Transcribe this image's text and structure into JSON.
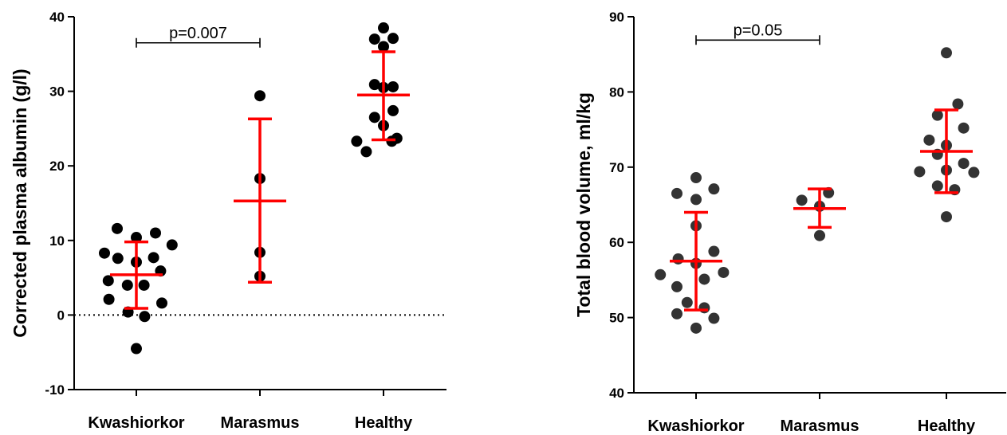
{
  "chart_data": [
    {
      "type": "scatter",
      "ylabel": "Corrected plasma albumin (g/l)",
      "ylim": [
        -10,
        40
      ],
      "yticks": [
        -10,
        0,
        10,
        20,
        30,
        40
      ],
      "categories": [
        "Kwashiorkor",
        "Marasmus",
        "Healthy"
      ],
      "reference_line": 0,
      "point_color": "#000000",
      "error_color": "#ff0000",
      "groups": [
        {
          "name": "Kwashiorkor",
          "points": [
            {
              "offset": -0.5,
              "y": 8.3
            },
            {
              "offset": -0.44,
              "y": 4.6
            },
            {
              "offset": -0.43,
              "y": 2.1
            },
            {
              "offset": -0.3,
              "y": 11.6
            },
            {
              "offset": -0.29,
              "y": 7.6
            },
            {
              "offset": -0.14,
              "y": 4.0
            },
            {
              "offset": -0.13,
              "y": 0.4
            },
            {
              "offset": 0.0,
              "y": 7.1
            },
            {
              "offset": 0.0,
              "y": 10.4
            },
            {
              "offset": 0.0,
              "y": -4.5
            },
            {
              "offset": 0.12,
              "y": 4.0
            },
            {
              "offset": 0.13,
              "y": -0.2
            },
            {
              "offset": 0.27,
              "y": 7.7
            },
            {
              "offset": 0.3,
              "y": 11.0
            },
            {
              "offset": 0.38,
              "y": 5.9
            },
            {
              "offset": 0.4,
              "y": 1.6
            },
            {
              "offset": 0.56,
              "y": 9.4
            }
          ],
          "mean": 5.4,
          "err_low": 0.9,
          "err_high": 9.8
        },
        {
          "name": "Marasmus",
          "points": [
            {
              "offset": 0.0,
              "y": 29.4
            },
            {
              "offset": 0.0,
              "y": 18.3
            },
            {
              "offset": 0.0,
              "y": 8.4
            },
            {
              "offset": 0.0,
              "y": 5.2
            }
          ],
          "mean": 15.3,
          "err_low": 4.4,
          "err_high": 26.3
        },
        {
          "name": "Healthy",
          "points": [
            {
              "offset": -0.42,
              "y": 23.3
            },
            {
              "offset": -0.27,
              "y": 21.9
            },
            {
              "offset": -0.14,
              "y": 37.0
            },
            {
              "offset": -0.14,
              "y": 30.9
            },
            {
              "offset": -0.14,
              "y": 26.5
            },
            {
              "offset": 0.0,
              "y": 38.5
            },
            {
              "offset": 0.0,
              "y": 36.0
            },
            {
              "offset": 0.0,
              "y": 30.5
            },
            {
              "offset": 0.0,
              "y": 25.4
            },
            {
              "offset": 0.13,
              "y": 23.3
            },
            {
              "offset": 0.15,
              "y": 27.4
            },
            {
              "offset": 0.15,
              "y": 30.6
            },
            {
              "offset": 0.15,
              "y": 37.1
            },
            {
              "offset": 0.21,
              "y": 23.7
            }
          ],
          "mean": 29.5,
          "err_low": 23.5,
          "err_high": 35.3
        }
      ],
      "annotation": {
        "text": "p=0.007",
        "from": "Kwashiorkor",
        "to": "Marasmus",
        "y": 36.5
      }
    },
    {
      "type": "scatter",
      "ylabel": "Total blood volume, ml/kg",
      "ylim": [
        40,
        90
      ],
      "yticks": [
        40,
        50,
        60,
        70,
        80,
        90
      ],
      "categories": [
        "Kwashiorkor",
        "Marasmus",
        "Healthy"
      ],
      "point_color": "#333333",
      "error_color": "#ff0000",
      "groups": [
        {
          "name": "Kwashiorkor",
          "points": [
            {
              "offset": -0.56,
              "y": 55.7
            },
            {
              "offset": -0.3,
              "y": 66.5
            },
            {
              "offset": -0.28,
              "y": 57.8
            },
            {
              "offset": -0.3,
              "y": 54.1
            },
            {
              "offset": -0.3,
              "y": 50.5
            },
            {
              "offset": -0.14,
              "y": 52.0
            },
            {
              "offset": 0.0,
              "y": 68.6
            },
            {
              "offset": 0.0,
              "y": 65.7
            },
            {
              "offset": 0.0,
              "y": 62.2
            },
            {
              "offset": 0.0,
              "y": 57.2
            },
            {
              "offset": 0.0,
              "y": 48.6
            },
            {
              "offset": 0.13,
              "y": 55.1
            },
            {
              "offset": 0.13,
              "y": 51.3
            },
            {
              "offset": 0.28,
              "y": 67.1
            },
            {
              "offset": 0.28,
              "y": 58.8
            },
            {
              "offset": 0.28,
              "y": 49.9
            },
            {
              "offset": 0.43,
              "y": 56.0
            }
          ],
          "mean": 57.5,
          "err_low": 51.0,
          "err_high": 64.0
        },
        {
          "name": "Marasmus",
          "points": [
            {
              "offset": -0.28,
              "y": 65.6
            },
            {
              "offset": 0.0,
              "y": 64.8
            },
            {
              "offset": 0.14,
              "y": 66.6
            },
            {
              "offset": 0.0,
              "y": 60.9
            }
          ],
          "mean": 64.5,
          "err_low": 62.0,
          "err_high": 67.1
        },
        {
          "name": "Healthy",
          "points": [
            {
              "offset": 0.0,
              "y": 85.2
            },
            {
              "offset": 0.18,
              "y": 78.4
            },
            {
              "offset": -0.14,
              "y": 76.9
            },
            {
              "offset": 0.27,
              "y": 75.2
            },
            {
              "offset": -0.27,
              "y": 73.6
            },
            {
              "offset": 0.0,
              "y": 72.9
            },
            {
              "offset": -0.14,
              "y": 71.7
            },
            {
              "offset": 0.27,
              "y": 70.5
            },
            {
              "offset": -0.42,
              "y": 69.4
            },
            {
              "offset": 0.0,
              "y": 69.6
            },
            {
              "offset": 0.43,
              "y": 69.3
            },
            {
              "offset": -0.14,
              "y": 67.5
            },
            {
              "offset": 0.13,
              "y": 67.0
            },
            {
              "offset": 0.0,
              "y": 63.4
            }
          ],
          "mean": 72.1,
          "err_low": 66.6,
          "err_high": 77.6
        }
      ],
      "annotation": {
        "text": "p=0.05",
        "from": "Kwashiorkor",
        "to": "Marasmus",
        "y": 86.9
      }
    }
  ]
}
